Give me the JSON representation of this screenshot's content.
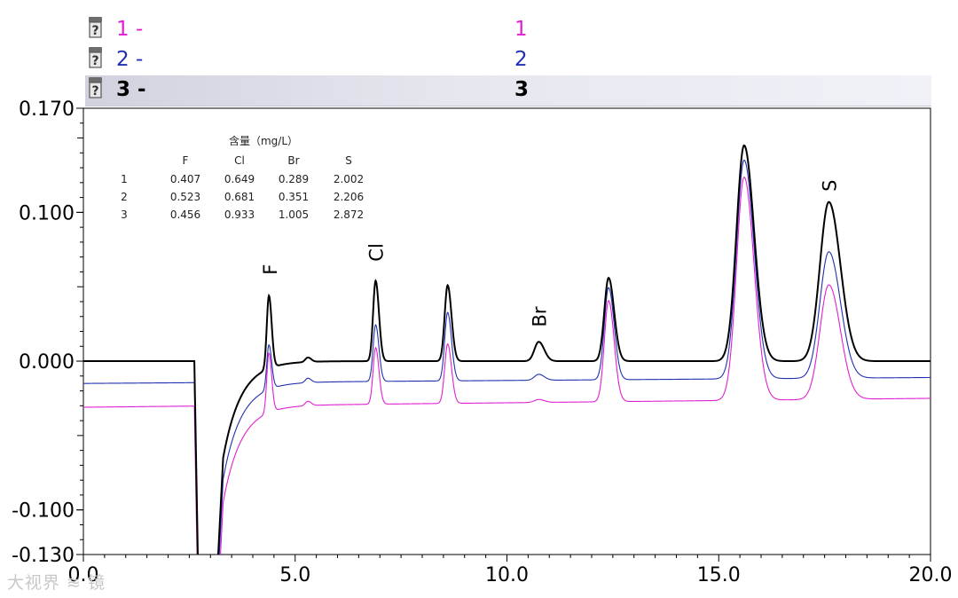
{
  "legend": [
    {
      "label": "1 -",
      "right": "1",
      "color": "#e020d0"
    },
    {
      "label": "2 -",
      "right": "2",
      "color": "#2030b0"
    },
    {
      "label": "3 -",
      "right": "3",
      "color": "#000000"
    }
  ],
  "table": {
    "title": "含量（mg/L）",
    "columns": [
      "F",
      "Cl",
      "Br",
      "S"
    ],
    "rows": [
      [
        "1",
        "0.407",
        "0.649",
        "0.289",
        "2.002"
      ],
      [
        "2",
        "0.523",
        "0.681",
        "0.351",
        "2.206"
      ],
      [
        "3",
        "0.456",
        "0.933",
        "1.005",
        "2.872"
      ]
    ]
  },
  "watermark": "大视界 ≋ 镜",
  "chart_data": {
    "type": "line",
    "title": "",
    "xlabel": "",
    "ylabel": "",
    "xlim": [
      0,
      20
    ],
    "ylim": [
      -0.13,
      0.17
    ],
    "xticks": [
      "0.0",
      "5.0",
      "10.0",
      "15.0",
      "20.0"
    ],
    "yticks": [
      {
        "value": 0.17,
        "label": "0.170"
      },
      {
        "value": 0.1,
        "label": "0.100"
      },
      {
        "value": 0.0,
        "label": "0.000"
      },
      {
        "value": -0.1,
        "label": "-0.100"
      },
      {
        "value": -0.13,
        "label": "-0.130"
      }
    ],
    "peak_labels": [
      {
        "text": "F",
        "x": 4.4,
        "y": 0.058
      },
      {
        "text": "Cl",
        "x": 6.9,
        "y": 0.067
      },
      {
        "text": "Br",
        "x": 10.75,
        "y": 0.023
      },
      {
        "text": "S",
        "x": 17.6,
        "y": 0.114
      }
    ],
    "series": [
      {
        "name": "1",
        "color": "#e020d0",
        "baseline": -0.031,
        "drift": 0.0003,
        "peaks": [
          [
            4.38,
            0.04,
            0.05
          ],
          [
            5.3,
            0.003,
            0.06
          ],
          [
            6.9,
            0.038,
            0.06
          ],
          [
            8.6,
            0.04,
            0.07
          ],
          [
            10.75,
            0.002,
            0.1
          ],
          [
            12.4,
            0.068,
            0.1
          ],
          [
            15.6,
            0.15,
            0.18
          ],
          [
            17.6,
            0.077,
            0.21
          ]
        ]
      },
      {
        "name": "2",
        "color": "#2030b0",
        "baseline": -0.015,
        "drift": 0.0002,
        "peaks": [
          [
            4.38,
            0.03,
            0.05
          ],
          [
            5.3,
            0.003,
            0.06
          ],
          [
            6.9,
            0.038,
            0.06
          ],
          [
            8.6,
            0.046,
            0.07
          ],
          [
            10.75,
            0.004,
            0.1
          ],
          [
            12.4,
            0.062,
            0.1
          ],
          [
            15.6,
            0.147,
            0.18
          ],
          [
            17.6,
            0.085,
            0.21
          ]
        ]
      },
      {
        "name": "3",
        "color": "#000000",
        "baseline": 0.0,
        "drift": 0.0,
        "peaks": [
          [
            4.38,
            0.049,
            0.05
          ],
          [
            5.3,
            0.003,
            0.06
          ],
          [
            6.9,
            0.054,
            0.06
          ],
          [
            8.6,
            0.051,
            0.07
          ],
          [
            10.75,
            0.013,
            0.1
          ],
          [
            12.4,
            0.056,
            0.1
          ],
          [
            15.6,
            0.145,
            0.18
          ],
          [
            17.6,
            0.107,
            0.21
          ]
        ]
      }
    ]
  }
}
